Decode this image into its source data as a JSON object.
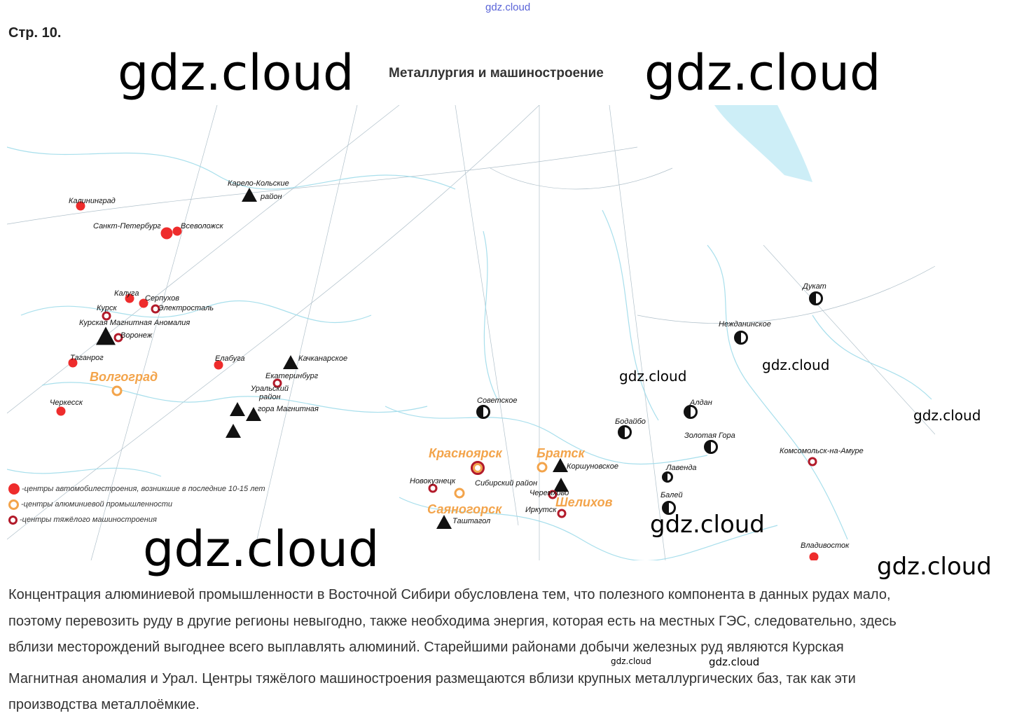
{
  "header": {
    "top_watermark": "gdz.cloud",
    "page_number": "Стр. 10.",
    "map_title": "Металлургия и машиностроение"
  },
  "colors": {
    "auto_center": "#ee2c2c",
    "aluminium_center": "#f3a44b",
    "heavy_machinery": "#b21a2a",
    "water": "#bfe9f3"
  },
  "map": {
    "markers": [
      {
        "type": "triangle",
        "label": "Карело-Кольские",
        "label2": "район"
      },
      {
        "type": "dot",
        "label": "Калининград"
      },
      {
        "type": "dot-big",
        "label": "Санкт-Петербург"
      },
      {
        "type": "dot",
        "label": "Всеволожск"
      },
      {
        "type": "dot",
        "label": "Калуга"
      },
      {
        "type": "dot",
        "label": "Серпухов"
      },
      {
        "type": "ring",
        "label": "Электросталь"
      },
      {
        "type": "ring",
        "label": "Курск"
      },
      {
        "type": "triangle-big",
        "label": "Курская Магнитная Аномалия"
      },
      {
        "type": "ring",
        "label": "Воронеж"
      },
      {
        "type": "dot",
        "label": "Таганрог"
      },
      {
        "type": "orange-ring",
        "label": "Волгоград"
      },
      {
        "type": "dot",
        "label": "Черкесск"
      },
      {
        "type": "dot",
        "label": "Елабуга"
      },
      {
        "type": "triangle",
        "label": "Качканарское"
      },
      {
        "type": "ring",
        "label": "Екатеринбург"
      },
      {
        "type": "triangle",
        "label": "Уральский",
        "label2": "район"
      },
      {
        "type": "triangle",
        "label": "гора Магнитная"
      },
      {
        "type": "triangle",
        "label": ""
      },
      {
        "type": "half",
        "label": "Советское"
      },
      {
        "type": "both",
        "label": "Красноярск"
      },
      {
        "type": "orange-ring",
        "label": "Братск"
      },
      {
        "type": "triangle",
        "label": "Коршуновское"
      },
      {
        "type": "ring",
        "label": "Новокузнецк"
      },
      {
        "type": "orange-ring",
        "label": "Сибирский район"
      },
      {
        "type": "triangle",
        "label": ""
      },
      {
        "type": "ring",
        "label": "Черемхово"
      },
      {
        "type": "ring",
        "label": "Иркутск"
      },
      {
        "type": "orange-label",
        "label": "Шелихов"
      },
      {
        "type": "orange-label",
        "label": "Саяногорск"
      },
      {
        "type": "triangle",
        "label": "Таштагол"
      },
      {
        "type": "half",
        "label": "Дукат"
      },
      {
        "type": "half",
        "label": "Нежданинское"
      },
      {
        "type": "half",
        "label": "Алдан"
      },
      {
        "type": "half",
        "label": "Бодайбо"
      },
      {
        "type": "half",
        "label": "Золотая Гора"
      },
      {
        "type": "half-sm",
        "label": "Лавенда"
      },
      {
        "type": "half",
        "label": "Балей"
      },
      {
        "type": "ring",
        "label": "Комсомольск-на-Амуре"
      },
      {
        "type": "dot",
        "label": "Владивосток"
      }
    ],
    "legend": [
      {
        "symbol": "dot",
        "text": "-центры автомобилестроения, возникшие в последние 10-15 лет"
      },
      {
        "symbol": "orange-ring",
        "text": "-центры алюминиевой промышленности"
      },
      {
        "symbol": "ring",
        "text": "-центры тяжёлого машиностроения"
      }
    ]
  },
  "watermarks": [
    "gdz.cloud",
    "gdz.cloud",
    "gdz.cloud",
    "gdz.cloud",
    "gdz.cloud",
    "gdz.cloud",
    "gdz.cloud",
    "gdz.cloud",
    "gdz.cloud",
    "gdz.cloud"
  ],
  "text": {
    "lines": [
      "Концентрация алюминиевой промышленности в Восточной Сибири обусловлена тем, что полезного компонента в данных рудах мало,",
      "поэтому перевозить руду в другие регионы невыгодно, также необходима энергия, которая есть на местных ГЭС, следовательно, здесь",
      "вблизи месторождений выгоднее всего выплавлять алюминий. Старейшими районами добычи железных руд являются Курская",
      "Магнитная аномалия и Урал. Центры тяжёлого машиностроения размещаются вблизи крупных металлургических баз, так как эти",
      "производства металлоёмкие."
    ]
  }
}
